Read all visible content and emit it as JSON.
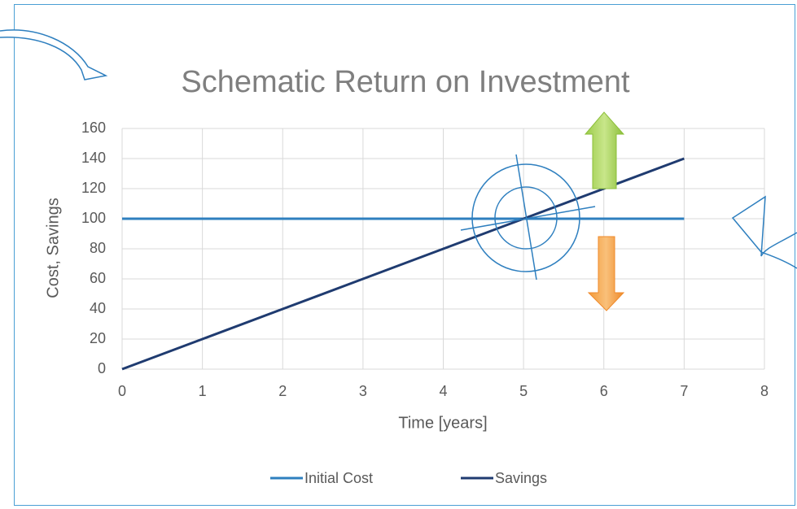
{
  "chart_data": {
    "type": "line",
    "title": "Schematic Return on Investment",
    "x_label": "Time [years]",
    "y_label": "Cost, Savings",
    "x": [
      0,
      1,
      2,
      3,
      4,
      5,
      6,
      7
    ],
    "series": [
      {
        "name": "Initial Cost",
        "color": "#2e7fbf",
        "values": [
          100,
          100,
          100,
          100,
          100,
          100,
          100,
          100
        ]
      },
      {
        "name": "Savings",
        "color": "#1f3b70",
        "values": [
          0,
          20,
          40,
          60,
          80,
          100,
          120,
          140
        ]
      }
    ],
    "xlim": [
      0,
      8
    ],
    "xticks": [
      0,
      1,
      2,
      3,
      4,
      5,
      6,
      7,
      8
    ],
    "ylim": [
      0,
      160
    ],
    "yticks": [
      0,
      20,
      40,
      60,
      80,
      100,
      120,
      140,
      160
    ],
    "grid": true,
    "legend": "bottom"
  }
}
